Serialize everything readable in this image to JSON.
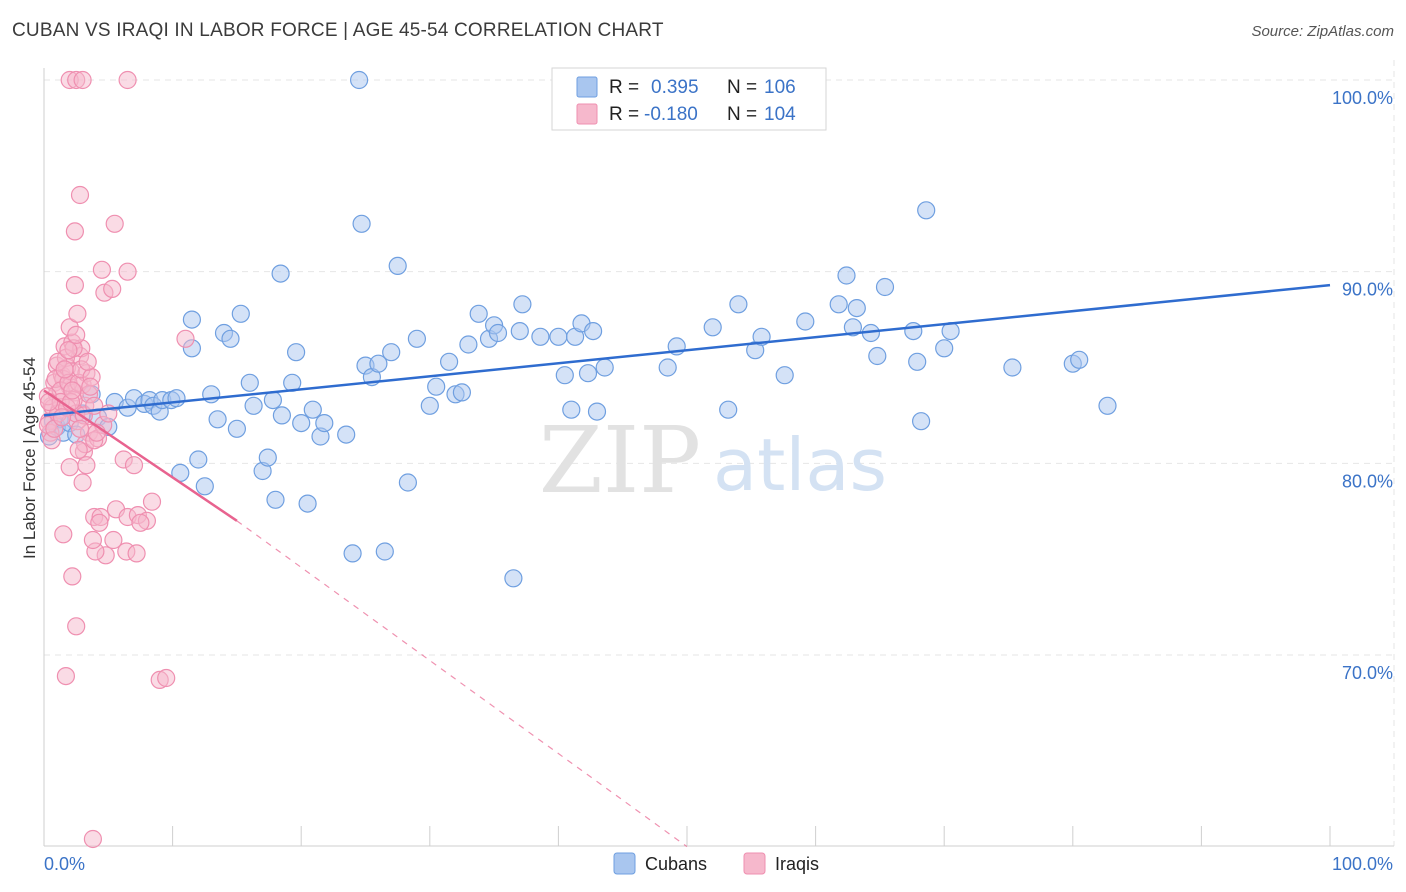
{
  "title": "CUBAN VS IRAQI IN LABOR FORCE | AGE 45-54 CORRELATION CHART",
  "source": "Source: ZipAtlas.com",
  "watermark": {
    "zip": "ZIP",
    "atlas": "atlas"
  },
  "chart_data": {
    "type": "scatter",
    "title": "CUBAN VS IRAQI IN LABOR FORCE | AGE 45-54 CORRELATION CHART",
    "xlabel": "",
    "ylabel": "In Labor Force | Age 45-54",
    "xlim": [
      0,
      100
    ],
    "ylim": [
      60,
      101
    ],
    "x_tick_labels": [
      "0.0%",
      "100.0%"
    ],
    "y_ticks": [
      {
        "value": 100,
        "label": "100.0%"
      },
      {
        "value": 90,
        "label": "90.0%"
      },
      {
        "value": 80,
        "label": "80.0%"
      },
      {
        "value": 70,
        "label": "70.0%"
      }
    ],
    "grid": true,
    "legend": {
      "placement": "top-center",
      "entries": [
        {
          "r_label": "R =",
          "r_value": "0.395",
          "n_label": "N =",
          "n_value": "106"
        },
        {
          "r_label": "R =",
          "r_value": "-0.180",
          "n_label": "N =",
          "n_value": "104"
        }
      ]
    },
    "series": [
      {
        "name": "Cubans",
        "color": "#6f9fe0",
        "fill": "#a9c6ef",
        "trend": {
          "x": [
            0,
            100
          ],
          "y": [
            82.5,
            89.3
          ],
          "color": "#2f6ccf"
        },
        "points": [
          [
            0.4,
            81.4
          ],
          [
            0.7,
            82.2
          ],
          [
            1.0,
            81.9
          ],
          [
            1.2,
            82.3
          ],
          [
            1.5,
            81.6
          ],
          [
            2.0,
            82.1
          ],
          [
            2.5,
            81.5
          ],
          [
            3.0,
            82.6
          ],
          [
            3.7,
            83.6
          ],
          [
            4.2,
            82.4
          ],
          [
            5.0,
            81.9
          ],
          [
            5.5,
            83.2
          ],
          [
            6.5,
            82.9
          ],
          [
            7.0,
            83.4
          ],
          [
            7.8,
            83.1
          ],
          [
            8.2,
            83.3
          ],
          [
            8.5,
            83.0
          ],
          [
            9.0,
            82.7
          ],
          [
            9.2,
            83.3
          ],
          [
            9.9,
            83.3
          ],
          [
            10.3,
            83.4
          ],
          [
            10.6,
            79.5
          ],
          [
            11.5,
            87.5
          ],
          [
            11.5,
            86.0
          ],
          [
            12.0,
            80.2
          ],
          [
            12.5,
            78.8
          ],
          [
            13.0,
            83.6
          ],
          [
            13.5,
            82.3
          ],
          [
            14.0,
            86.8
          ],
          [
            14.5,
            86.5
          ],
          [
            15.0,
            81.8
          ],
          [
            15.3,
            87.8
          ],
          [
            16.0,
            84.2
          ],
          [
            16.3,
            83.0
          ],
          [
            17.0,
            79.6
          ],
          [
            17.4,
            80.3
          ],
          [
            17.8,
            83.3
          ],
          [
            18.0,
            78.1
          ],
          [
            18.4,
            89.9
          ],
          [
            18.5,
            82.5
          ],
          [
            19.3,
            84.2
          ],
          [
            19.6,
            85.8
          ],
          [
            20.0,
            82.1
          ],
          [
            20.5,
            77.9
          ],
          [
            20.9,
            82.8
          ],
          [
            21.5,
            81.4
          ],
          [
            21.8,
            82.1
          ],
          [
            23.5,
            81.5
          ],
          [
            24.0,
            75.3
          ],
          [
            24.7,
            92.5
          ],
          [
            25.0,
            85.1
          ],
          [
            25.5,
            84.5
          ],
          [
            26.0,
            85.2
          ],
          [
            26.5,
            75.4
          ],
          [
            27.0,
            85.8
          ],
          [
            27.5,
            90.3
          ],
          [
            28.3,
            79.0
          ],
          [
            29.0,
            86.5
          ],
          [
            30.0,
            83.0
          ],
          [
            30.5,
            84.0
          ],
          [
            31.5,
            85.3
          ],
          [
            32.0,
            83.6
          ],
          [
            32.5,
            83.7
          ],
          [
            33.0,
            86.2
          ],
          [
            33.8,
            87.8
          ],
          [
            34.6,
            86.5
          ],
          [
            35.0,
            87.2
          ],
          [
            35.3,
            86.8
          ],
          [
            36.5,
            74.0
          ],
          [
            37.0,
            86.9
          ],
          [
            37.2,
            88.3
          ],
          [
            38.6,
            86.6
          ],
          [
            40.0,
            86.6
          ],
          [
            40.5,
            84.6
          ],
          [
            41.0,
            82.8
          ],
          [
            41.3,
            86.6
          ],
          [
            41.8,
            87.3
          ],
          [
            42.3,
            84.7
          ],
          [
            42.7,
            86.9
          ],
          [
            43.0,
            82.7
          ],
          [
            43.6,
            85.0
          ],
          [
            48.5,
            85.0
          ],
          [
            49.2,
            86.1
          ],
          [
            52.0,
            87.1
          ],
          [
            53.2,
            82.8
          ],
          [
            54.0,
            88.3
          ],
          [
            55.3,
            85.9
          ],
          [
            55.8,
            86.6
          ],
          [
            57.6,
            84.6
          ],
          [
            59.2,
            87.4
          ],
          [
            61.8,
            88.3
          ],
          [
            62.4,
            89.8
          ],
          [
            62.9,
            87.1
          ],
          [
            63.2,
            88.1
          ],
          [
            64.3,
            86.8
          ],
          [
            64.8,
            85.6
          ],
          [
            65.4,
            89.2
          ],
          [
            67.6,
            86.9
          ],
          [
            67.9,
            85.3
          ],
          [
            68.2,
            82.2
          ],
          [
            68.6,
            93.2
          ],
          [
            70.0,
            86.0
          ],
          [
            70.5,
            86.9
          ],
          [
            75.3,
            85.0
          ],
          [
            80.0,
            85.2
          ],
          [
            80.5,
            85.4
          ],
          [
            82.7,
            83.0
          ],
          [
            24.5,
            100.0
          ]
        ]
      },
      {
        "name": "Iraqis",
        "color": "#ef8fb0",
        "fill": "#f6b8cc",
        "trend": {
          "x": [
            0,
            15
          ],
          "y": [
            83.8,
            77.0
          ],
          "color": "#e8638f",
          "dashed": {
            "x": [
              15,
              50
            ],
            "y": [
              77.0,
              60.0
            ]
          }
        },
        "points": [
          [
            0.4,
            82.2
          ],
          [
            0.6,
            83.0
          ],
          [
            0.8,
            84.2
          ],
          [
            1.0,
            85.1
          ],
          [
            1.2,
            82.8
          ],
          [
            1.4,
            84.6
          ],
          [
            1.6,
            86.1
          ],
          [
            1.8,
            85.0
          ],
          [
            2.0,
            84.0
          ],
          [
            2.2,
            86.3
          ],
          [
            2.4,
            83.7
          ],
          [
            2.6,
            82.2
          ],
          [
            2.8,
            85.6
          ],
          [
            3.0,
            84.1
          ],
          [
            3.2,
            83.0
          ],
          [
            0.5,
            81.6
          ],
          [
            1.0,
            83.6
          ],
          [
            1.5,
            84.4
          ],
          [
            1.7,
            85.5
          ],
          [
            2.1,
            84.8
          ],
          [
            2.3,
            83.3
          ],
          [
            2.5,
            82.6
          ],
          [
            2.9,
            86.0
          ],
          [
            3.3,
            84.7
          ],
          [
            0.7,
            82.9
          ],
          [
            0.9,
            84.4
          ],
          [
            1.1,
            85.3
          ],
          [
            1.3,
            83.8
          ],
          [
            1.9,
            84.2
          ],
          [
            0.3,
            83.5
          ],
          [
            2.0,
            87.1
          ],
          [
            2.3,
            86.0
          ],
          [
            2.5,
            86.7
          ],
          [
            2.7,
            84.2
          ],
          [
            2.4,
            89.3
          ],
          [
            2.6,
            87.8
          ],
          [
            2.9,
            84.9
          ],
          [
            3.1,
            82.5
          ],
          [
            3.5,
            83.6
          ],
          [
            3.7,
            84.5
          ],
          [
            3.9,
            83.0
          ],
          [
            3.1,
            80.6
          ],
          [
            3.5,
            81.6
          ],
          [
            3.2,
            81.0
          ],
          [
            3.9,
            77.2
          ],
          [
            4.2,
            81.3
          ],
          [
            4.4,
            77.2
          ],
          [
            4.6,
            82.0
          ],
          [
            4.8,
            75.2
          ],
          [
            5.0,
            82.6
          ],
          [
            5.4,
            76.0
          ],
          [
            5.6,
            77.6
          ],
          [
            6.2,
            80.2
          ],
          [
            6.5,
            77.2
          ],
          [
            2.0,
            79.8
          ],
          [
            1.5,
            76.3
          ],
          [
            2.2,
            74.1
          ],
          [
            2.5,
            71.5
          ],
          [
            1.7,
            68.9
          ],
          [
            3.0,
            79.0
          ],
          [
            2.7,
            80.7
          ],
          [
            3.6,
            84.0
          ],
          [
            3.9,
            81.2
          ],
          [
            4.0,
            75.4
          ],
          [
            4.1,
            81.6
          ],
          [
            3.8,
            76.0
          ],
          [
            4.3,
            76.9
          ],
          [
            4.7,
            88.9
          ],
          [
            2.8,
            94.0
          ],
          [
            2.4,
            92.1
          ],
          [
            4.5,
            90.1
          ],
          [
            5.5,
            92.5
          ],
          [
            6.5,
            90.0
          ],
          [
            5.3,
            89.1
          ],
          [
            7.0,
            79.9
          ],
          [
            7.3,
            77.3
          ],
          [
            8.0,
            77.0
          ],
          [
            8.4,
            78.0
          ],
          [
            9.0,
            68.7
          ],
          [
            9.5,
            68.8
          ],
          [
            11.0,
            86.5
          ],
          [
            2.0,
            100.0
          ],
          [
            2.5,
            100.0
          ],
          [
            3.0,
            100.0
          ],
          [
            6.5,
            100.0
          ],
          [
            0.3,
            82.0
          ],
          [
            0.6,
            81.2
          ],
          [
            1.1,
            82.6
          ],
          [
            1.3,
            83.2
          ],
          [
            1.6,
            84.9
          ],
          [
            1.8,
            82.9
          ],
          [
            2.1,
            83.2
          ],
          [
            0.8,
            81.8
          ],
          [
            3.4,
            85.3
          ],
          [
            3.8,
            60.4
          ],
          [
            6.4,
            75.4
          ],
          [
            7.2,
            75.3
          ],
          [
            2.2,
            83.8
          ],
          [
            1.4,
            82.4
          ],
          [
            0.4,
            83.2
          ],
          [
            1.9,
            85.9
          ],
          [
            2.8,
            81.8
          ],
          [
            3.3,
            79.9
          ],
          [
            7.5,
            76.9
          ]
        ]
      }
    ]
  }
}
